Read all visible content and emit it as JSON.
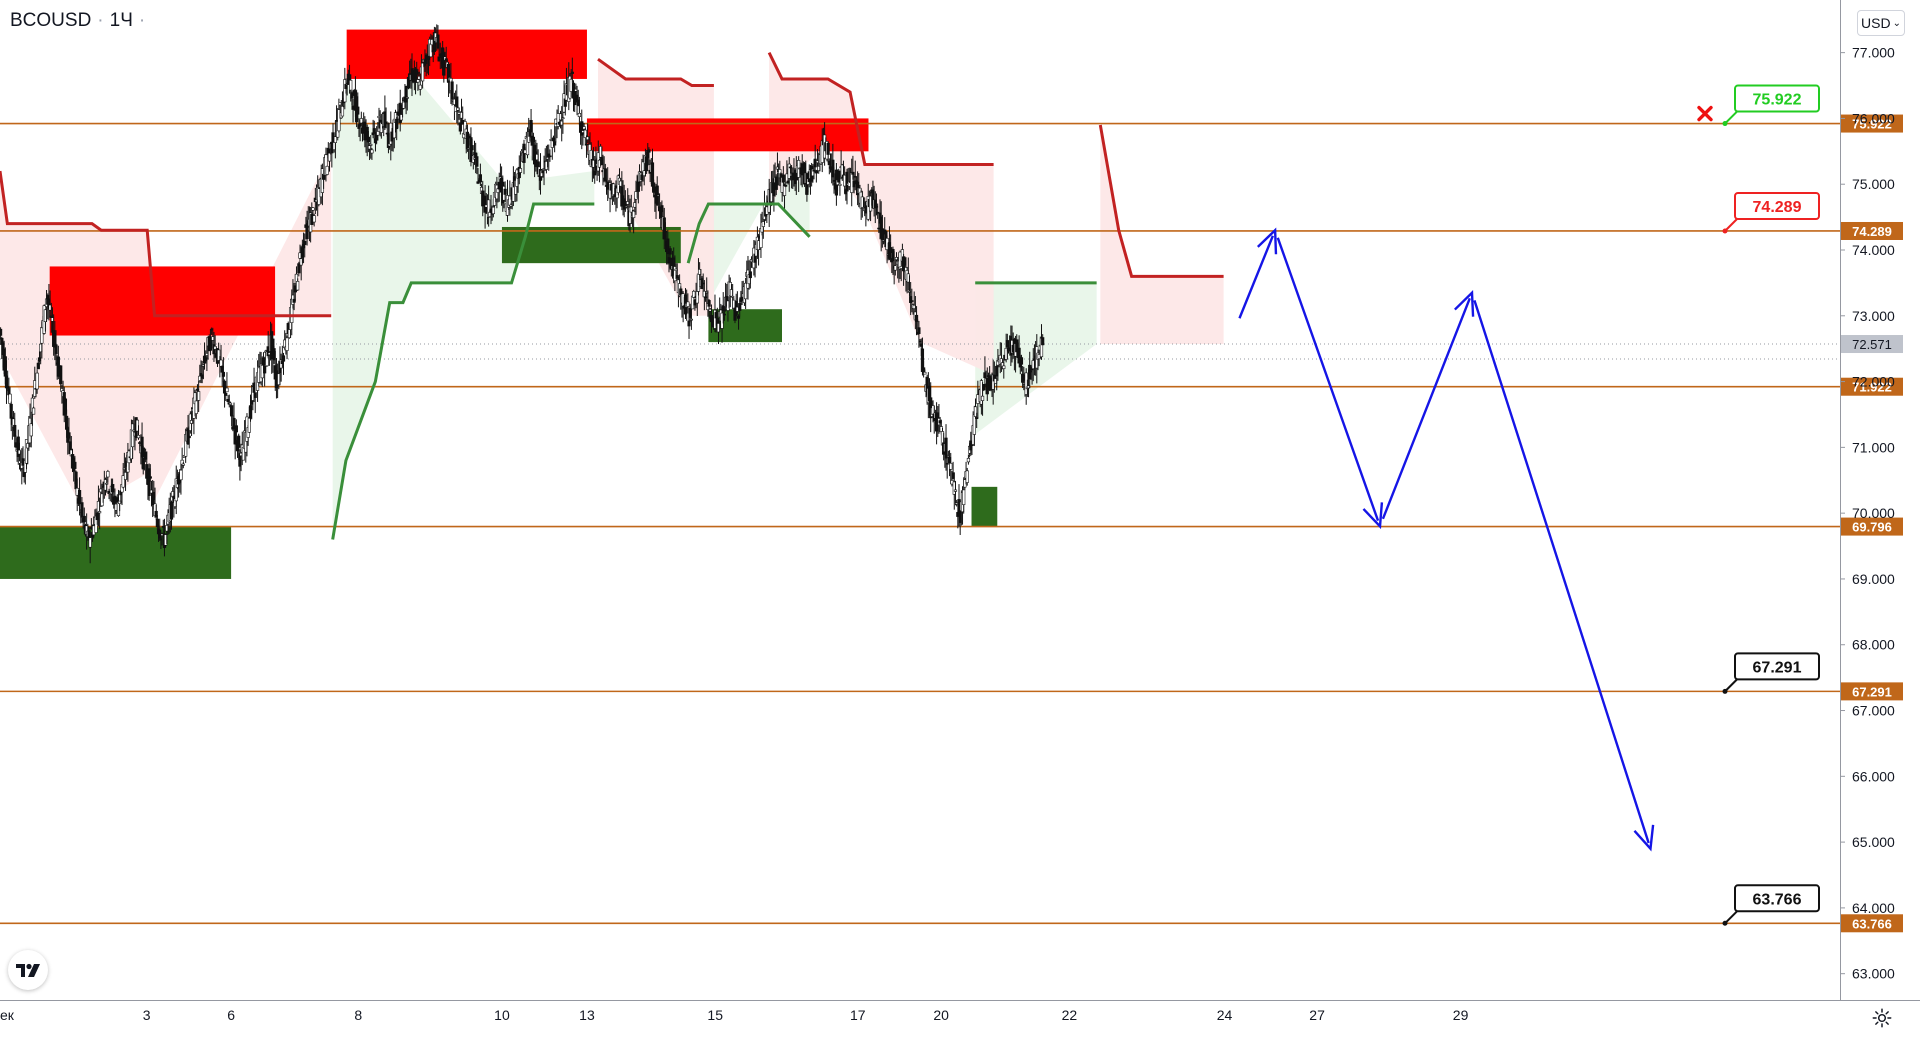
{
  "header": {
    "symbol": "BCOUSD",
    "interval": "1Ч"
  },
  "toolbar": {
    "currency": "USD"
  },
  "icons": {
    "logo": "tradingview-logo-icon",
    "settings": "gear-icon",
    "currency_caret": "chevron-down-icon",
    "stop": "close-icon"
  },
  "colors": {
    "level_line": "#c0671a",
    "supply_zone": "#ff0000",
    "demand_zone": "#2e6b1c",
    "bull_trail": "#3a8f3a",
    "bear_trail": "#c22222",
    "bull_fill": "#e8f5e9",
    "bear_fill": "#fde7e7",
    "forecast": "#1515e6",
    "price_tag": "#bfc3cc"
  },
  "chart_data": {
    "type": "line",
    "instrument": "BCOUSD",
    "timeframe": "1Ч",
    "y_axis": {
      "ticks": [
        "77.000",
        "76.000",
        "75.000",
        "74.000",
        "73.000",
        "72.000",
        "71.000",
        "70.000",
        "69.000",
        "68.000",
        "67.000",
        "66.000",
        "65.000",
        "64.000",
        "63.000"
      ],
      "range": [
        62.6,
        77.8
      ]
    },
    "x_axis": {
      "ticks": [
        "ек",
        "3",
        "6",
        "8",
        "10",
        "13",
        "15",
        "17",
        "20",
        "22",
        "24",
        "27",
        "29"
      ]
    },
    "current_price": "72.571",
    "levels": [
      {
        "price": 75.922,
        "label": "75.922",
        "callout": "75.922",
        "callout_color": "#22cc22",
        "stop_marker": true
      },
      {
        "price": 74.289,
        "label": "74.289",
        "callout": "74.289",
        "callout_color": "#ee2222"
      },
      {
        "price": 71.922,
        "label": "71.922"
      },
      {
        "price": 69.796,
        "label": "69.796"
      },
      {
        "price": 67.291,
        "label": "67.291",
        "callout": "67.291",
        "callout_color": "#111111"
      },
      {
        "price": 63.766,
        "label": "63.766",
        "callout": "63.766",
        "callout_color": "#111111"
      }
    ],
    "supply_zones": [
      {
        "from": "2",
        "to": "7",
        "top": 73.75,
        "bottom": 72.7
      },
      {
        "from": "8",
        "to": "13",
        "top": 77.35,
        "bottom": 76.6
      },
      {
        "from": "13",
        "to": "17",
        "top": 76.0,
        "bottom": 75.5
      }
    ],
    "demand_zones": [
      {
        "from": "1",
        "to": "6",
        "top": 69.8,
        "bottom": 69.0
      },
      {
        "from": "10",
        "to": "14",
        "top": 74.35,
        "bottom": 73.8
      },
      {
        "from": "15",
        "to": "16",
        "top": 73.1,
        "bottom": 72.6
      },
      {
        "from": "20",
        "to": "21",
        "top": 70.4,
        "bottom": 69.8
      }
    ],
    "series": [
      {
        "values": [
          72.8,
          72.2,
          71.5,
          71.0,
          70.6,
          71.2,
          71.9,
          72.6,
          73.3,
          72.8,
          72.2,
          71.6,
          71.0,
          70.4,
          69.9,
          69.6,
          69.8,
          70.2,
          70.6,
          70.3,
          70.1,
          70.5,
          70.9,
          71.4,
          71.0,
          70.6,
          70.2,
          69.8,
          69.6,
          70.0,
          70.4,
          70.8,
          71.2,
          71.6,
          72.0,
          72.4,
          72.7,
          72.4,
          72.0,
          71.6,
          71.2,
          70.8,
          71.3,
          71.8,
          72.1,
          72.3,
          72.6,
          72.0,
          72.4,
          72.8,
          73.3,
          73.9,
          74.3,
          74.5,
          74.8,
          75.2,
          75.5,
          75.8,
          76.2,
          76.6,
          76.3,
          76.0,
          75.8,
          75.6,
          75.8,
          76.0,
          75.7,
          75.9,
          76.1,
          76.4,
          76.7,
          76.5,
          76.8,
          77.1,
          77.2,
          76.9,
          76.7,
          76.3,
          76.0,
          75.8,
          75.5,
          75.2,
          74.8,
          74.6,
          74.8,
          75.0,
          74.7,
          74.9,
          75.2,
          75.5,
          75.8,
          75.4,
          75.1,
          75.4,
          75.7,
          76.0,
          76.3,
          76.6,
          76.2,
          75.8,
          75.5,
          75.2,
          75.4,
          75.0,
          74.8,
          75.0,
          74.7,
          74.5,
          74.9,
          75.2,
          75.4,
          75.0,
          74.6,
          74.2,
          73.8,
          73.5,
          73.2,
          73.0,
          73.3,
          73.6,
          73.2,
          73.0,
          72.9,
          73.1,
          73.4,
          73.0,
          73.3,
          73.6,
          73.9,
          74.2,
          74.6,
          74.9,
          75.1,
          75.0,
          75.2,
          75.1,
          75.3,
          75.0,
          75.2,
          75.4,
          75.6,
          75.3,
          75.0,
          75.2,
          74.9,
          75.1,
          74.8,
          74.6,
          74.8,
          74.5,
          74.2,
          74.0,
          73.8,
          73.9,
          73.6,
          73.2,
          72.6,
          72.0,
          71.6,
          71.4,
          71.1,
          70.8,
          70.3,
          70.0,
          70.6,
          71.2,
          71.7,
          72.0,
          71.9,
          72.1,
          72.3,
          72.5,
          72.6,
          72.3,
          71.9,
          72.2,
          72.4,
          72.571
        ]
      }
    ],
    "bull_trail": [
      {
        "points": [
          [
            0.1808,
            69.6
          ],
          [
            0.188,
            70.8
          ],
          [
            0.196,
            71.4
          ],
          [
            0.204,
            72.0
          ],
          [
            0.2118,
            73.2
          ],
          [
            0.219,
            73.2
          ],
          [
            0.2235,
            73.5
          ],
          [
            0.278,
            73.5
          ],
          [
            0.2855,
            74.2
          ],
          [
            0.29,
            74.7
          ],
          [
            0.296,
            74.7
          ],
          [
            0.323,
            74.7
          ]
        ]
      },
      {
        "points": [
          [
            0.374,
            73.8
          ],
          [
            0.38,
            74.4
          ],
          [
            0.385,
            74.7
          ],
          [
            0.423,
            74.7
          ],
          [
            0.44,
            74.2
          ]
        ]
      },
      {
        "points": [
          [
            0.53,
            73.5
          ],
          [
            0.596,
            73.5
          ]
        ]
      }
    ],
    "bear_trail": [
      {
        "points": [
          [
            0.0,
            75.2
          ],
          [
            0.004,
            74.4
          ],
          [
            0.05,
            74.4
          ],
          [
            0.055,
            74.3
          ],
          [
            0.08,
            74.3
          ],
          [
            0.084,
            73.0
          ],
          [
            0.18,
            73.0
          ]
        ]
      },
      {
        "points": [
          [
            0.325,
            76.9
          ],
          [
            0.34,
            76.6
          ],
          [
            0.37,
            76.6
          ],
          [
            0.376,
            76.5
          ],
          [
            0.388,
            76.5
          ]
        ]
      },
      {
        "points": [
          [
            0.418,
            77.0
          ],
          [
            0.425,
            76.6
          ],
          [
            0.45,
            76.6
          ],
          [
            0.462,
            76.4
          ],
          [
            0.47,
            75.3
          ],
          [
            0.5,
            75.3
          ],
          [
            0.54,
            75.3
          ]
        ]
      },
      {
        "points": [
          [
            0.598,
            75.9
          ],
          [
            0.608,
            74.3
          ],
          [
            0.615,
            73.6
          ],
          [
            0.665,
            73.6
          ]
        ]
      }
    ],
    "forecast_path": [
      {
        "x": 0.672,
        "y": 72.85
      },
      {
        "x": 0.693,
        "y": 74.3
      },
      {
        "x": 0.75,
        "y": 69.8
      },
      {
        "x": 0.8,
        "y": 73.35
      },
      {
        "x": 0.897,
        "y": 64.9
      }
    ]
  }
}
